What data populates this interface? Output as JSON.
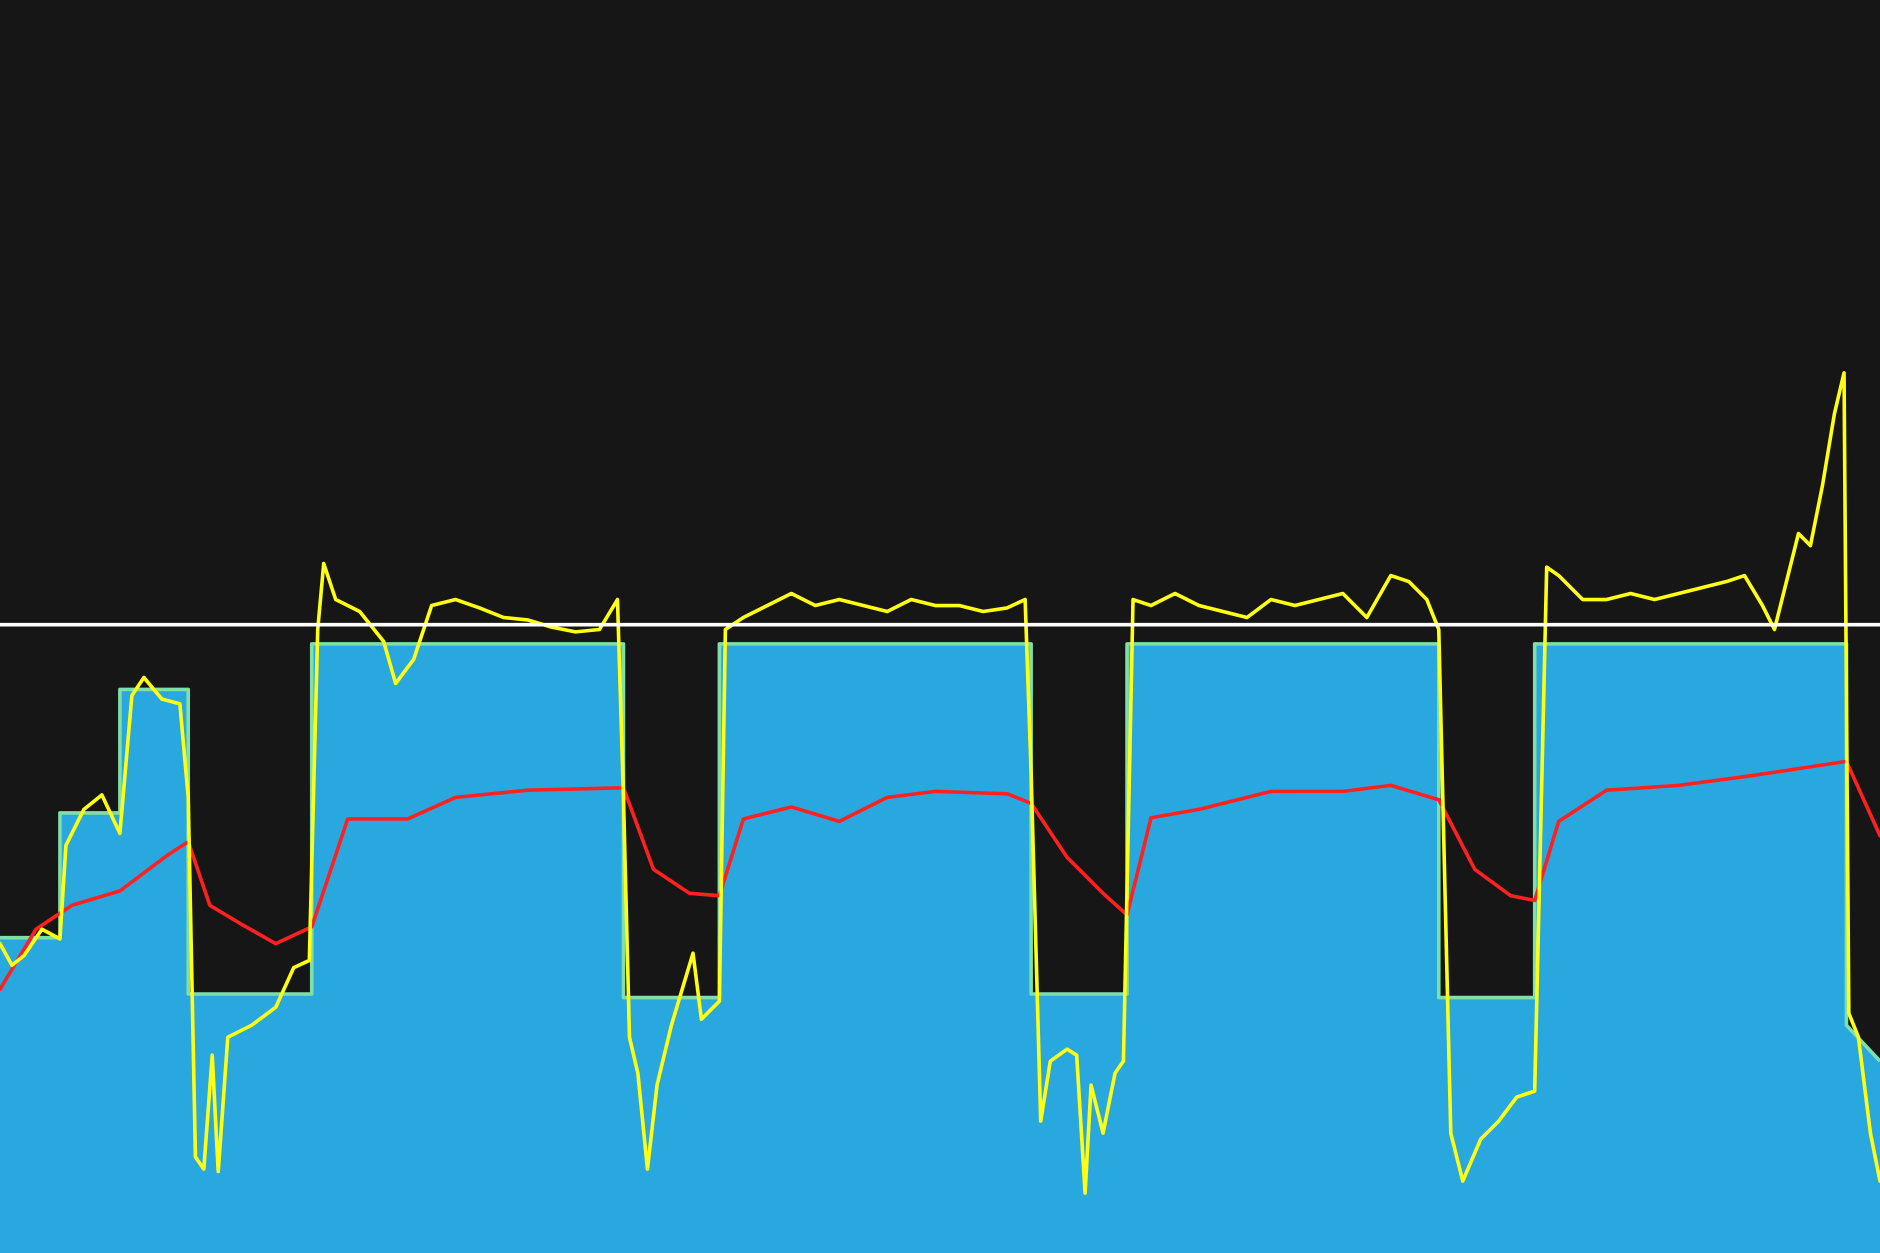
{
  "chart_data": {
    "type": "line",
    "xlim": [
      0,
      1568
    ],
    "ylim": [
      0,
      1045
    ],
    "background_color": "#161616",
    "grid": false,
    "legend": "none",
    "reference_line": {
      "y": 524,
      "color": "#ffffff"
    },
    "series": [
      {
        "kind": "area-step",
        "color": "#29a8df",
        "stroke": "#7ee0a8",
        "points": [
          [
            0,
            263
          ],
          [
            50,
            263
          ],
          [
            50,
            367
          ],
          [
            100,
            367
          ],
          [
            100,
            470
          ],
          [
            157,
            470
          ],
          [
            157,
            216
          ],
          [
            260,
            216
          ],
          [
            260,
            508
          ],
          [
            520,
            508
          ],
          [
            520,
            213
          ],
          [
            600,
            213
          ],
          [
            600,
            508
          ],
          [
            860,
            508
          ],
          [
            860,
            216
          ],
          [
            940,
            216
          ],
          [
            940,
            508
          ],
          [
            1200,
            508
          ],
          [
            1200,
            213
          ],
          [
            1280,
            213
          ],
          [
            1280,
            508
          ],
          [
            1540,
            508
          ],
          [
            1540,
            190
          ],
          [
            1568,
            160
          ]
        ]
      },
      {
        "kind": "line",
        "color": "#ff2020",
        "points": [
          [
            0,
            220
          ],
          [
            30,
            270
          ],
          [
            60,
            290
          ],
          [
            100,
            302
          ],
          [
            140,
            332
          ],
          [
            157,
            343
          ],
          [
            175,
            290
          ],
          [
            200,
            275
          ],
          [
            230,
            258
          ],
          [
            260,
            272
          ],
          [
            290,
            362
          ],
          [
            340,
            362
          ],
          [
            380,
            380
          ],
          [
            440,
            386
          ],
          [
            520,
            388
          ],
          [
            545,
            320
          ],
          [
            575,
            300
          ],
          [
            600,
            298
          ],
          [
            620,
            362
          ],
          [
            660,
            372
          ],
          [
            700,
            360
          ],
          [
            740,
            380
          ],
          [
            780,
            385
          ],
          [
            840,
            383
          ],
          [
            860,
            375
          ],
          [
            890,
            330
          ],
          [
            920,
            300
          ],
          [
            940,
            282
          ],
          [
            960,
            363
          ],
          [
            1000,
            370
          ],
          [
            1060,
            385
          ],
          [
            1120,
            385
          ],
          [
            1160,
            390
          ],
          [
            1200,
            378
          ],
          [
            1230,
            320
          ],
          [
            1260,
            298
          ],
          [
            1280,
            294
          ],
          [
            1300,
            360
          ],
          [
            1340,
            386
          ],
          [
            1400,
            390
          ],
          [
            1460,
            398
          ],
          [
            1540,
            410
          ],
          [
            1568,
            348
          ]
        ]
      },
      {
        "kind": "line",
        "color": "#ffff14",
        "points": [
          [
            0,
            258
          ],
          [
            10,
            240
          ],
          [
            20,
            248
          ],
          [
            35,
            270
          ],
          [
            50,
            262
          ],
          [
            55,
            340
          ],
          [
            70,
            370
          ],
          [
            85,
            382
          ],
          [
            100,
            350
          ],
          [
            110,
            465
          ],
          [
            120,
            480
          ],
          [
            135,
            462
          ],
          [
            150,
            458
          ],
          [
            157,
            380
          ],
          [
            163,
            80
          ],
          [
            170,
            70
          ],
          [
            177,
            165
          ],
          [
            182,
            68
          ],
          [
            190,
            180
          ],
          [
            210,
            190
          ],
          [
            230,
            205
          ],
          [
            245,
            238
          ],
          [
            258,
            244
          ],
          [
            265,
            520
          ],
          [
            270,
            575
          ],
          [
            280,
            545
          ],
          [
            300,
            535
          ],
          [
            320,
            510
          ],
          [
            330,
            475
          ],
          [
            345,
            495
          ],
          [
            360,
            540
          ],
          [
            380,
            545
          ],
          [
            400,
            538
          ],
          [
            420,
            530
          ],
          [
            440,
            528
          ],
          [
            460,
            522
          ],
          [
            480,
            518
          ],
          [
            500,
            520
          ],
          [
            515,
            545
          ],
          [
            520,
            380
          ],
          [
            525,
            180
          ],
          [
            532,
            150
          ],
          [
            540,
            70
          ],
          [
            548,
            140
          ],
          [
            560,
            190
          ],
          [
            578,
            250
          ],
          [
            585,
            195
          ],
          [
            600,
            210
          ],
          [
            605,
            520
          ],
          [
            620,
            530
          ],
          [
            640,
            540
          ],
          [
            660,
            550
          ],
          [
            680,
            540
          ],
          [
            700,
            545
          ],
          [
            720,
            540
          ],
          [
            740,
            535
          ],
          [
            760,
            545
          ],
          [
            780,
            540
          ],
          [
            800,
            540
          ],
          [
            820,
            535
          ],
          [
            840,
            538
          ],
          [
            855,
            545
          ],
          [
            860,
            400
          ],
          [
            868,
            110
          ],
          [
            876,
            160
          ],
          [
            890,
            170
          ],
          [
            898,
            165
          ],
          [
            905,
            50
          ],
          [
            910,
            140
          ],
          [
            920,
            100
          ],
          [
            930,
            150
          ],
          [
            937,
            160
          ],
          [
            945,
            545
          ],
          [
            960,
            540
          ],
          [
            980,
            550
          ],
          [
            1000,
            540
          ],
          [
            1020,
            535
          ],
          [
            1040,
            530
          ],
          [
            1060,
            545
          ],
          [
            1080,
            540
          ],
          [
            1100,
            545
          ],
          [
            1120,
            550
          ],
          [
            1140,
            530
          ],
          [
            1160,
            565
          ],
          [
            1175,
            560
          ],
          [
            1190,
            545
          ],
          [
            1200,
            520
          ],
          [
            1210,
            100
          ],
          [
            1220,
            60
          ],
          [
            1235,
            95
          ],
          [
            1250,
            110
          ],
          [
            1265,
            130
          ],
          [
            1280,
            135
          ],
          [
            1290,
            572
          ],
          [
            1300,
            565
          ],
          [
            1320,
            545
          ],
          [
            1340,
            545
          ],
          [
            1360,
            550
          ],
          [
            1380,
            545
          ],
          [
            1400,
            550
          ],
          [
            1420,
            555
          ],
          [
            1440,
            560
          ],
          [
            1455,
            565
          ],
          [
            1470,
            540
          ],
          [
            1480,
            520
          ],
          [
            1490,
            560
          ],
          [
            1500,
            600
          ],
          [
            1510,
            590
          ],
          [
            1520,
            640
          ],
          [
            1530,
            700
          ],
          [
            1538,
            734
          ],
          [
            1542,
            200
          ],
          [
            1550,
            180
          ],
          [
            1560,
            100
          ],
          [
            1568,
            60
          ]
        ]
      }
    ]
  }
}
